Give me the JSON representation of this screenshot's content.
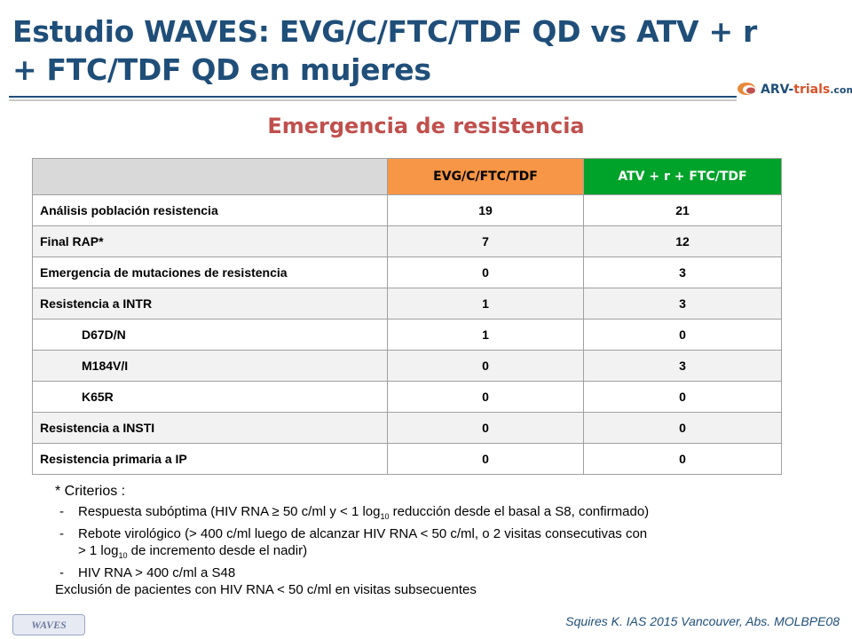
{
  "title": {
    "line1": "Estudio WAVES: EVG/C/FTC/TDF QD vs ATV + r",
    "line2": "+ FTC/TDF QD en mujeres"
  },
  "logo": {
    "prefix": "ARV-",
    "highlight": "trials",
    "suffix": ".com"
  },
  "subtitle": "Emergencia de resistencia",
  "table": {
    "headers": [
      "",
      "EVG/C/FTC/TDF",
      "ATV + r + FTC/TDF"
    ],
    "rows": [
      {
        "label": "Análisis población resistencia",
        "evg": "19",
        "atv": "21"
      },
      {
        "label": "Final RAP*",
        "evg": "7",
        "atv": "12"
      },
      {
        "label": "Emergencia de mutaciones de resistencia",
        "evg": "0",
        "atv": "3"
      },
      {
        "label": "Resistencia a INTR",
        "evg": "1",
        "atv": "3"
      },
      {
        "label": "D67D/N",
        "evg": "1",
        "atv": "0"
      },
      {
        "label": "M184V/I",
        "evg": "0",
        "atv": "3"
      },
      {
        "label": "K65R",
        "evg": "0",
        "atv": "0"
      },
      {
        "label": "Resistencia a INSTI",
        "evg": "0",
        "atv": "0"
      },
      {
        "label": "Resistencia primaria a IP",
        "evg": "0",
        "atv": "0"
      }
    ]
  },
  "notes": {
    "head": "* Criterios :",
    "dash": "-",
    "item1_a": "Respuesta subóptima (HIV RNA ≥ 50 c/ml y < 1 log",
    "item1_sub": "10",
    "item1_b": " reducción desde el basal a S8, confirmado)",
    "item2_a": "Rebote virológico (> 400 c/ml luego de alcanzar HIV RNA < 50 c/ml, o 2 visitas consecutivas con",
    "item2_b": "> 1 log",
    "item2_sub": "10",
    "item2_c": "  de incremento desde el nadir)",
    "item3": "HIV RNA > 400 c/ml a S48",
    "footer": "Exclusión de pacientes con HIV RNA < 50 c/ml en visitas subsecuentes"
  },
  "badge": "WAVES",
  "citation": "Squires K. IAS 2015 Vancouver, Abs. MOLBPE08"
}
